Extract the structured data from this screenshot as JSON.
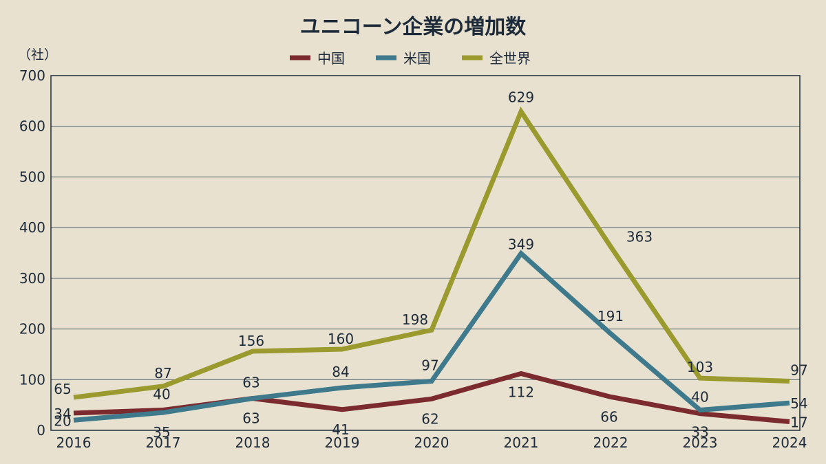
{
  "chart_data": {
    "type": "line",
    "title": "ユニコーン企業の増加数",
    "unit_label": "（社）",
    "categories": [
      "2016",
      "2017",
      "2018",
      "2019",
      "2020",
      "2021",
      "2022",
      "2023",
      "2024"
    ],
    "ylim": [
      0,
      700
    ],
    "yticks": [
      0,
      100,
      200,
      300,
      400,
      500,
      600,
      700
    ],
    "grid": true,
    "legend_position": "top-center",
    "series": [
      {
        "name": "中国",
        "color": "#7b2a2e",
        "values": [
          34,
          40,
          63,
          41,
          62,
          112,
          66,
          33,
          17
        ]
      },
      {
        "name": "米国",
        "color": "#3e7a8c",
        "values": [
          20,
          35,
          63,
          84,
          97,
          349,
          191,
          40,
          54
        ]
      },
      {
        "name": "全世界",
        "color": "#9a9a2e",
        "values": [
          65,
          87,
          156,
          160,
          198,
          629,
          363,
          103,
          97
        ]
      }
    ]
  }
}
